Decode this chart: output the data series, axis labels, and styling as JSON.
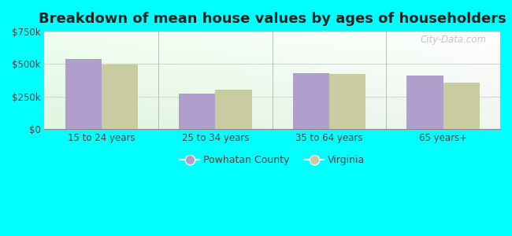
{
  "title": "Breakdown of mean house values by ages of householders",
  "categories": [
    "15 to 24 years",
    "25 to 34 years",
    "35 to 64 years",
    "65 years+"
  ],
  "powhatan_values": [
    540000,
    275000,
    430000,
    415000
  ],
  "virginia_values": [
    495000,
    305000,
    425000,
    355000
  ],
  "powhatan_color": "#b09fcc",
  "virginia_color": "#c8cc9f",
  "background_color": "#00ffff",
  "ylim": [
    0,
    750000
  ],
  "yticks": [
    0,
    250000,
    500000,
    750000
  ],
  "legend_labels": [
    "Powhatan County",
    "Virginia"
  ],
  "watermark": "City-Data.com",
  "title_fontsize": 13,
  "bar_width": 0.32,
  "grid_color": "#d0d8d0",
  "separator_color": "#aabbaa"
}
